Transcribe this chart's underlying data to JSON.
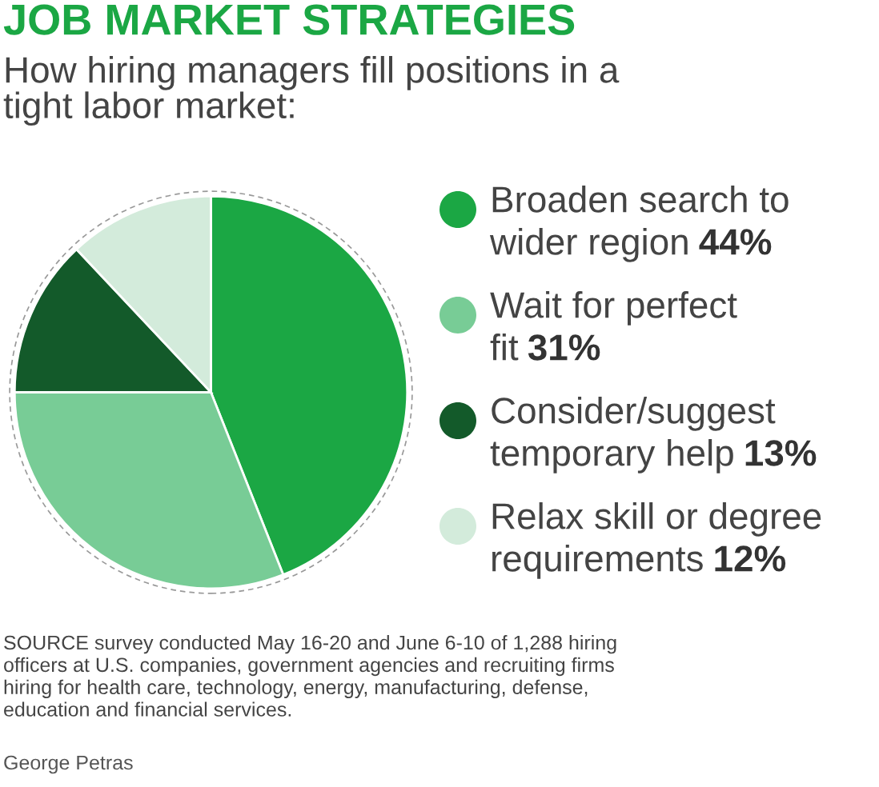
{
  "chart_data": {
    "type": "pie",
    "title": "JOB MARKET STRATEGIES",
    "subtitle": "How hiring managers fill positions in a\ntight labor market:",
    "categories": [
      "Broaden search to\nwider region",
      "Wait for perfect\nfit",
      "Consider/suggest\ntemporary help",
      "Relax skill or degree\nrequirements"
    ],
    "values": [
      44,
      31,
      13,
      12
    ],
    "colors": [
      "#1ba744",
      "#78cc96",
      "#135a2a",
      "#d3ebdb"
    ],
    "value_labels": [
      "44%",
      "31%",
      "13%",
      "12%"
    ],
    "legend": "right",
    "annotations": [
      "SOURCE survey conducted May 16-20 and June 6-10 of 1,288 hiring\nofficers at U.S. companies, government agencies and recruiting firms\nhiring for health care, technology, energy, manufacturing, defense,\neducation and financial services.",
      "George Petras"
    ]
  }
}
